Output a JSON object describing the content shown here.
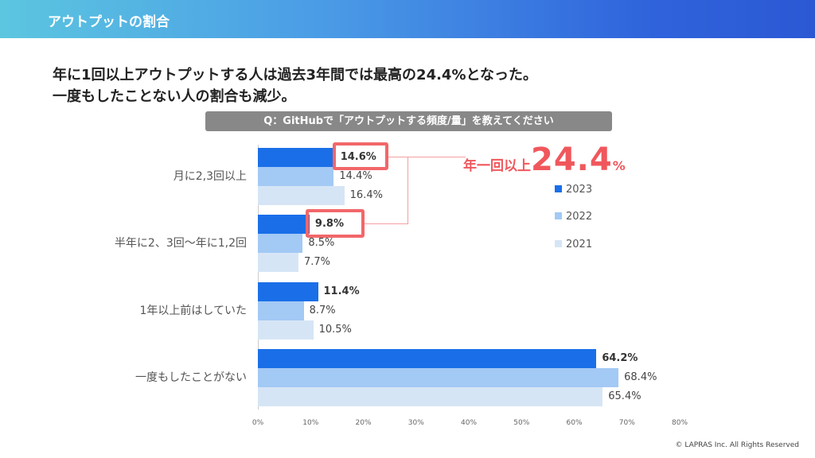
{
  "header": {
    "title": "アウトプットの割合"
  },
  "headline": [
    "年に1回以上アウトプットする人は過去3年間では最高の24.4%となった。",
    "一度もしたことない人の割合も減少。"
  ],
  "question": "Q：GitHubで「アウトプットする頻度/量」を教えてください",
  "callout": {
    "label": "年一回以上",
    "value": "24.4",
    "unit": "%"
  },
  "copyright": "© LAPRAS Inc. All Rights Reserved",
  "colors": {
    "2023": "#1a6fe8",
    "2022": "#a3c9f5",
    "2021": "#d6e5f5",
    "highlight": "#f2676a"
  },
  "chart_data": {
    "type": "bar",
    "orientation": "horizontal",
    "categories": [
      "月に2,3回以上",
      "半年に2、3回〜年に1,2回",
      "1年以上前はしていた",
      "一度もしたことがない"
    ],
    "series": [
      {
        "name": "2023",
        "values": [
          14.6,
          9.8,
          11.4,
          64.2
        ],
        "labels": [
          "14.6%",
          "9.8%",
          "11.4%",
          "64.2%"
        ]
      },
      {
        "name": "2022",
        "values": [
          14.4,
          8.5,
          8.7,
          68.4
        ],
        "labels": [
          "14.4%",
          "8.5%",
          "8.7%",
          "68.4%"
        ]
      },
      {
        "name": "2021",
        "values": [
          16.4,
          7.7,
          10.5,
          65.4
        ],
        "labels": [
          "16.4%",
          "7.7%",
          "10.5%",
          "65.4%"
        ]
      }
    ],
    "xlim": [
      0,
      80
    ],
    "ticks": [
      "0%",
      "10%",
      "20%",
      "30%",
      "40%",
      "50%",
      "60%",
      "70%",
      "80%"
    ],
    "legend": "right"
  }
}
